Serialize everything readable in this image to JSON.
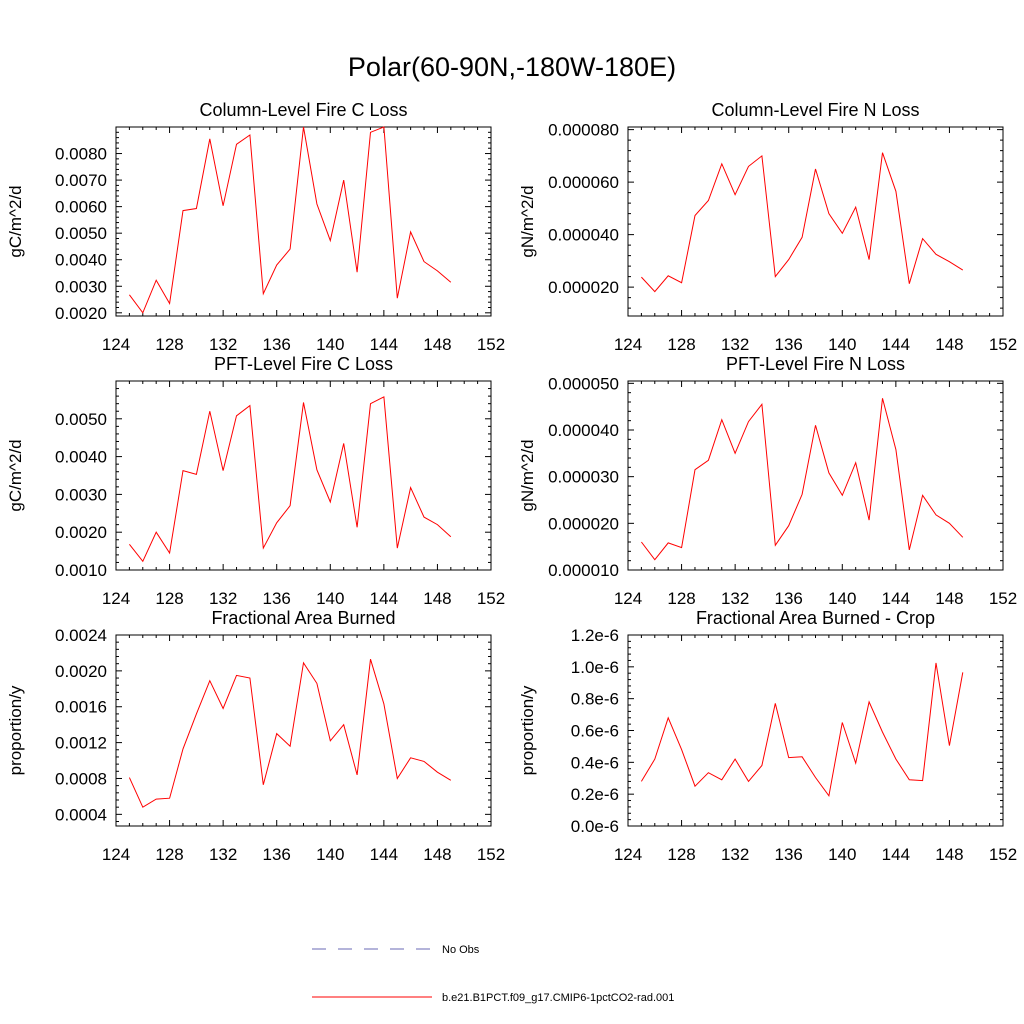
{
  "figure": {
    "title": "Polar(60-90N,-180W-180E)",
    "line_color": "#ff0000",
    "obs_color": "#6a6ab5"
  },
  "legend": {
    "obs_label": "No Obs",
    "model_label": "b.e21.B1PCT.f09_g17.CMIP6-1pctCO2-rad.001"
  },
  "chart_data": [
    {
      "type": "line",
      "title": "Column-Level Fire C Loss",
      "ylabel": "gC/m^2/d",
      "xlim": [
        124,
        152
      ],
      "xticks": [
        124,
        128,
        132,
        136,
        140,
        144,
        148,
        152
      ],
      "ylim": [
        0.00188,
        0.009
      ],
      "yticks": [
        0.002,
        0.003,
        0.004,
        0.005,
        0.006,
        0.007,
        0.008
      ],
      "ytick_labels": [
        "0.0020",
        "0.0030",
        "0.0040",
        "0.0050",
        "0.0060",
        "0.0070",
        "0.0080"
      ],
      "x": [
        125,
        126,
        127,
        128,
        129,
        130,
        131,
        132,
        133,
        134,
        135,
        136,
        137,
        138,
        139,
        140,
        141,
        142,
        143,
        144,
        145,
        146,
        147,
        148,
        149
      ],
      "values": [
        0.00268,
        0.002,
        0.00323,
        0.00235,
        0.00585,
        0.00593,
        0.00855,
        0.00603,
        0.00835,
        0.0087,
        0.00272,
        0.0038,
        0.0044,
        0.009,
        0.0061,
        0.00472,
        0.007,
        0.00353,
        0.0088,
        0.009,
        0.00255,
        0.00505,
        0.00393,
        0.00358,
        0.00315
      ]
    },
    {
      "type": "line",
      "title": "Column-Level Fire N Loss",
      "ylabel": "gN/m^2/d",
      "xlim": [
        124,
        152
      ],
      "xticks": [
        124,
        128,
        132,
        136,
        140,
        144,
        148,
        152
      ],
      "ylim": [
        9e-06,
        8.1e-05
      ],
      "yticks": [
        2e-05,
        4e-05,
        6e-05,
        8e-05
      ],
      "ytick_labels": [
        "0.000020",
        "0.000040",
        "0.000060",
        "0.000080"
      ],
      "x": [
        125,
        126,
        127,
        128,
        129,
        130,
        131,
        132,
        133,
        134,
        135,
        136,
        137,
        138,
        139,
        140,
        141,
        142,
        143,
        144,
        145,
        146,
        147,
        148,
        149
      ],
      "values": [
        2.38e-05,
        1.83e-05,
        2.43e-05,
        2.17e-05,
        4.73e-05,
        5.3e-05,
        6.7e-05,
        5.52e-05,
        6.6e-05,
        7e-05,
        2.4e-05,
        3.05e-05,
        3.9e-05,
        6.5e-05,
        4.8e-05,
        4.05e-05,
        5.05e-05,
        3.05e-05,
        7.12e-05,
        5.65e-05,
        2.13e-05,
        3.85e-05,
        3.25e-05,
        2.97e-05,
        2.65e-05
      ]
    },
    {
      "type": "line",
      "title": "PFT-Level Fire C Loss",
      "ylabel": "gC/m^2/d",
      "xlim": [
        124,
        152
      ],
      "xticks": [
        124,
        128,
        132,
        136,
        140,
        144,
        148,
        152
      ],
      "ylim": [
        0.001,
        0.006
      ],
      "yticks": [
        0.001,
        0.002,
        0.003,
        0.004,
        0.005
      ],
      "ytick_labels": [
        "0.0010",
        "0.0020",
        "0.0030",
        "0.0040",
        "0.0050"
      ],
      "x": [
        125,
        126,
        127,
        128,
        129,
        130,
        131,
        132,
        133,
        134,
        135,
        136,
        137,
        138,
        139,
        140,
        141,
        142,
        143,
        144,
        145,
        146,
        147,
        148,
        149
      ],
      "values": [
        0.00168,
        0.00123,
        0.002,
        0.00145,
        0.00363,
        0.00353,
        0.0052,
        0.00363,
        0.00508,
        0.00535,
        0.00158,
        0.00225,
        0.0027,
        0.00543,
        0.00365,
        0.0028,
        0.00435,
        0.00213,
        0.0054,
        0.00558,
        0.00158,
        0.00318,
        0.0024,
        0.0022,
        0.00188
      ]
    },
    {
      "type": "line",
      "title": "PFT-Level Fire N Loss",
      "ylabel": "gN/m^2/d",
      "xlim": [
        124,
        152
      ],
      "xticks": [
        124,
        128,
        132,
        136,
        140,
        144,
        148,
        152
      ],
      "ylim": [
        1e-05,
        5.05e-05
      ],
      "yticks": [
        1e-05,
        2e-05,
        3e-05,
        4e-05,
        5e-05
      ],
      "ytick_labels": [
        "0.000010",
        "0.000020",
        "0.000030",
        "0.000040",
        "0.000050"
      ],
      "x": [
        125,
        126,
        127,
        128,
        129,
        130,
        131,
        132,
        133,
        134,
        135,
        136,
        137,
        138,
        139,
        140,
        141,
        142,
        143,
        144,
        145,
        146,
        147,
        148,
        149
      ],
      "values": [
        1.6e-05,
        1.22e-05,
        1.58e-05,
        1.48e-05,
        3.15e-05,
        3.35e-05,
        4.22e-05,
        3.5e-05,
        4.18e-05,
        4.55e-05,
        1.53e-05,
        1.95e-05,
        2.62e-05,
        4.1e-05,
        3.08e-05,
        2.6e-05,
        3.3e-05,
        2.07e-05,
        4.68e-05,
        3.58e-05,
        1.43e-05,
        2.6e-05,
        2.18e-05,
        2e-05,
        1.7e-05
      ]
    },
    {
      "type": "line",
      "title": "Fractional Area Burned",
      "ylabel": "proportion/y",
      "xlim": [
        124,
        152
      ],
      "xticks": [
        124,
        128,
        132,
        136,
        140,
        144,
        148,
        152
      ],
      "ylim": [
        0.00027,
        0.0024
      ],
      "yticks": [
        0.0004,
        0.0008,
        0.0012,
        0.0016,
        0.002,
        0.0024
      ],
      "ytick_labels": [
        "0.0004",
        "0.0008",
        "0.0012",
        "0.0016",
        "0.0020",
        "0.0024"
      ],
      "x": [
        125,
        126,
        127,
        128,
        129,
        130,
        131,
        132,
        133,
        134,
        135,
        136,
        137,
        138,
        139,
        140,
        141,
        142,
        143,
        144,
        145,
        146,
        147,
        148,
        149
      ],
      "values": [
        0.00081,
        0.00048,
        0.00057,
        0.00058,
        0.00113,
        0.00152,
        0.00189,
        0.00158,
        0.00195,
        0.00192,
        0.00073,
        0.0013,
        0.00116,
        0.00209,
        0.00186,
        0.00122,
        0.0014,
        0.00084,
        0.00213,
        0.00163,
        0.0008,
        0.00103,
        0.00099,
        0.00087,
        0.00078
      ]
    },
    {
      "type": "line",
      "title": "Fractional Area Burned - Crop",
      "ylabel": "proportion/y",
      "xlim": [
        124,
        152
      ],
      "xticks": [
        124,
        128,
        132,
        136,
        140,
        144,
        148,
        152
      ],
      "ylim": [
        0.0,
        1.2e-06
      ],
      "yticks": [
        0.0,
        2e-07,
        4e-07,
        6e-07,
        8e-07,
        1e-06,
        1.2e-06
      ],
      "ytick_labels": [
        "0.0e-6",
        "0.2e-6",
        "0.4e-6",
        "0.6e-6",
        "0.8e-6",
        "1.0e-6",
        "1.2e-6"
      ],
      "x": [
        125,
        126,
        127,
        128,
        129,
        130,
        131,
        132,
        133,
        134,
        135,
        136,
        137,
        138,
        139,
        140,
        141,
        142,
        143,
        144,
        145,
        146,
        147,
        148,
        149
      ],
      "values": [
        2.8e-07,
        4.2e-07,
        6.8e-07,
        4.8e-07,
        2.5e-07,
        3.35e-07,
        2.9e-07,
        4.2e-07,
        2.8e-07,
        3.8e-07,
        7.7e-07,
        4.3e-07,
        4.35e-07,
        3.05e-07,
        1.9e-07,
        6.5e-07,
        3.95e-07,
        7.8e-07,
        5.9e-07,
        4.2e-07,
        2.9e-07,
        2.85e-07,
        1.025e-06,
        5.05e-07,
        9.65e-07
      ]
    }
  ]
}
